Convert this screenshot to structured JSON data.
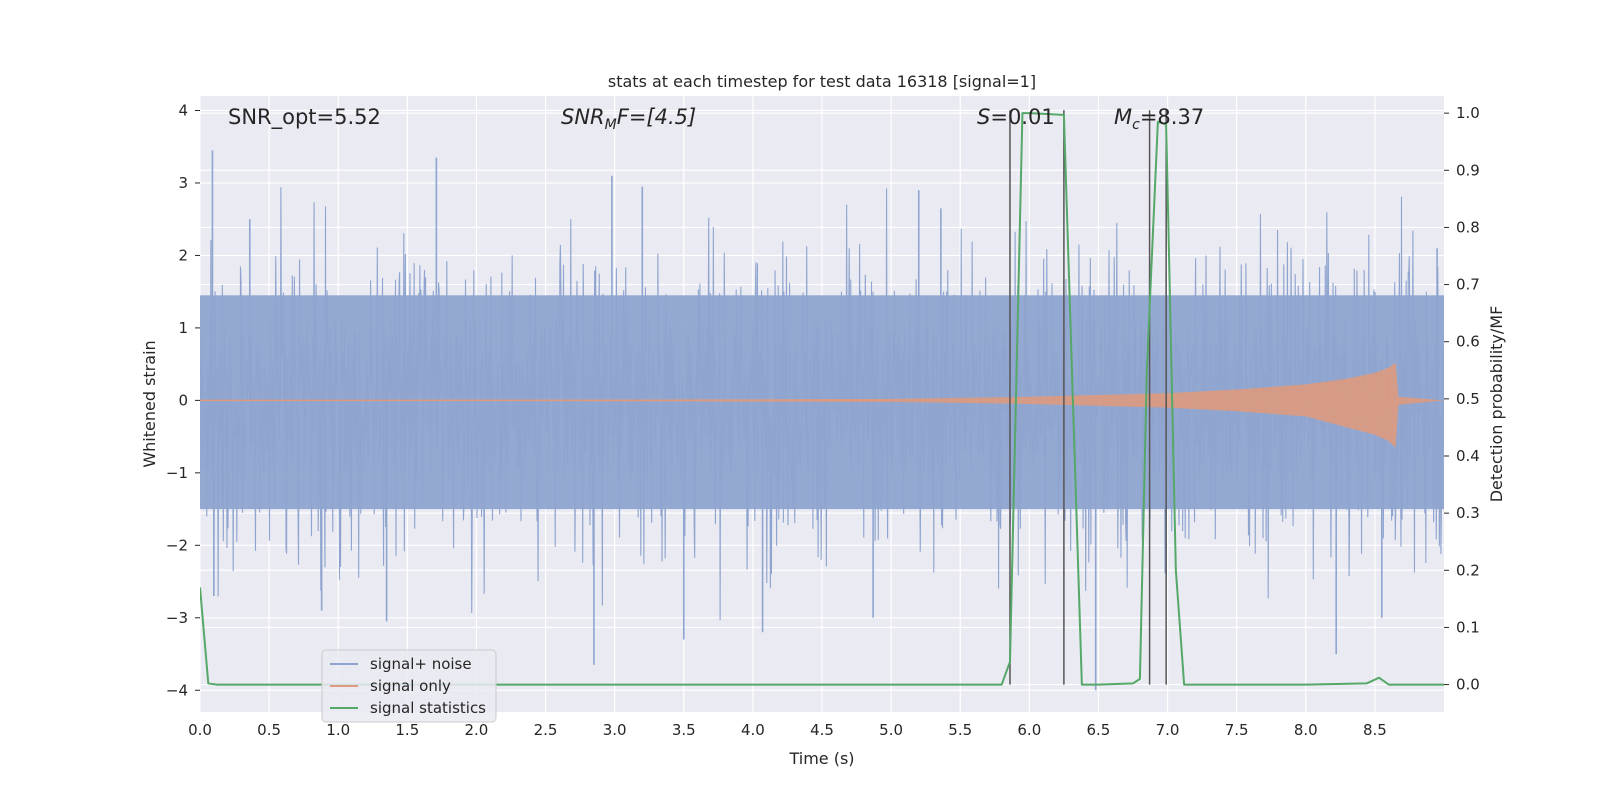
{
  "chart_data": {
    "type": "line",
    "title": "stats at each timestep for test data 16318 [signal=1]",
    "xlabel": "Time (s)",
    "ylabel": "Whitened strain",
    "y2label": "Detection probability/MF",
    "xlim": [
      0.0,
      9.0
    ],
    "ylim": [
      -4.3,
      4.2
    ],
    "y2lim": [
      -0.048,
      1.03
    ],
    "xticks": [
      "0.0",
      "0.5",
      "1.0",
      "1.5",
      "2.0",
      "2.5",
      "3.0",
      "3.5",
      "4.0",
      "4.5",
      "5.0",
      "5.5",
      "6.0",
      "6.5",
      "7.0",
      "7.5",
      "8.0",
      "8.5"
    ],
    "xtick_values": [
      0.0,
      0.5,
      1.0,
      1.5,
      2.0,
      2.5,
      3.0,
      3.5,
      4.0,
      4.5,
      5.0,
      5.5,
      6.0,
      6.5,
      7.0,
      7.5,
      8.0,
      8.5
    ],
    "yticks": [
      4,
      3,
      2,
      1,
      0,
      -1,
      -2,
      -3,
      -4
    ],
    "ytick_labels": [
      "4",
      "3",
      "2",
      "1",
      "0",
      "−1",
      "−2",
      "−3",
      "−4"
    ],
    "y2ticks": [
      1.0,
      0.9,
      0.8,
      0.7,
      0.6,
      0.5,
      0.4,
      0.3,
      0.2,
      0.1,
      0.0
    ],
    "y2tick_labels": [
      "1.0",
      "0.9",
      "0.8",
      "0.7",
      "0.6",
      "0.5",
      "0.4",
      "0.3",
      "0.2",
      "0.1",
      "0.0"
    ],
    "annotations": {
      "snr_opt": "SNR_opt=5.52",
      "snr_mf_base": "SNR",
      "snr_mf_sub": "M",
      "snr_mf_rest": "F=[4.5]",
      "s_sym": "S",
      "s_val": "=0.01",
      "mc_sym": "M",
      "mc_sub": "c",
      "mc_val": "=8.37"
    },
    "legend": {
      "position": "lower-left",
      "entries": [
        "signal+ noise",
        "signal only",
        "signal statistics"
      ]
    },
    "series": [
      {
        "name": "signal+ noise",
        "color": "#8fa5cf",
        "description": "whitened strain noise, approx. gaussian envelope",
        "envelope": [
          [
            0.0,
            -1.6,
            1.6
          ],
          [
            9.0,
            -1.6,
            1.6
          ]
        ],
        "spikes": [
          [
            0.09,
            3.45
          ],
          [
            0.1,
            -2.7
          ],
          [
            0.36,
            2.5
          ],
          [
            0.88,
            -2.9
          ],
          [
            1.35,
            -3.05
          ],
          [
            1.71,
            3.35
          ],
          [
            2.85,
            -3.65
          ],
          [
            2.98,
            3.1
          ],
          [
            3.2,
            2.95
          ],
          [
            3.5,
            -3.3
          ],
          [
            4.07,
            -3.2
          ],
          [
            4.87,
            -3.0
          ],
          [
            5.2,
            2.9
          ],
          [
            5.36,
            2.65
          ],
          [
            6.48,
            -4.0
          ],
          [
            8.22,
            -3.5
          ],
          [
            8.55,
            -3.0
          ],
          [
            8.95,
            2.1
          ]
        ]
      },
      {
        "name": "signal only",
        "color": "#dd9a7e",
        "description": "chirp signal amplitude envelope, merger near t=8.65",
        "envelope": [
          [
            0.0,
            0.0
          ],
          [
            5.0,
            0.02
          ],
          [
            6.0,
            0.05
          ],
          [
            7.0,
            0.1
          ],
          [
            7.5,
            0.15
          ],
          [
            8.0,
            0.22
          ],
          [
            8.3,
            0.3
          ],
          [
            8.5,
            0.38
          ],
          [
            8.6,
            0.45
          ],
          [
            8.65,
            0.52
          ],
          [
            8.67,
            0.05
          ],
          [
            9.0,
            0.0
          ]
        ]
      },
      {
        "name": "signal statistics",
        "color": "#55a868",
        "x": [
          0.0,
          0.06,
          0.12,
          0.5,
          1.0,
          2.0,
          3.0,
          4.0,
          5.0,
          5.8,
          5.86,
          5.95,
          6.0,
          6.25,
          6.38,
          6.5,
          6.75,
          6.8,
          6.85,
          6.93,
          6.99,
          7.06,
          7.12,
          7.5,
          8.0,
          8.44,
          8.53,
          8.6,
          9.0
        ],
        "y": [
          0.17,
          0.002,
          0.0,
          0.0,
          0.0,
          0.0,
          0.0,
          0.0,
          0.0,
          0.0,
          0.04,
          1.0,
          1.0,
          0.997,
          0.0,
          0.0,
          0.002,
          0.01,
          0.55,
          0.985,
          0.98,
          0.2,
          0.0,
          0.0,
          0.0,
          0.002,
          0.012,
          0.0,
          0.0
        ]
      }
    ],
    "vlines": {
      "color": "#555555",
      "x": [
        5.86,
        6.25,
        6.87,
        6.99
      ]
    }
  }
}
